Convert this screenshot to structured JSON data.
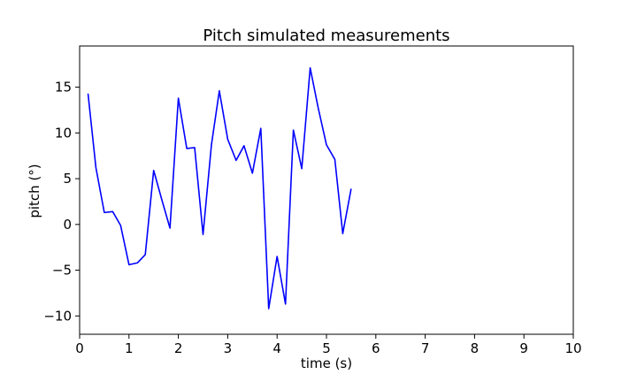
{
  "chart_data": {
    "type": "line",
    "title": "Pitch simulated measurements",
    "xlabel": "time (s)",
    "ylabel": "pitch (°)",
    "xlim": [
      0,
      10
    ],
    "ylim": [
      -12,
      19.5
    ],
    "xticks": [
      0,
      1,
      2,
      3,
      4,
      5,
      6,
      7,
      8,
      9,
      10
    ],
    "yticks": [
      -10,
      -5,
      0,
      5,
      10,
      15
    ],
    "ytick_labels": [
      "−10",
      "−5",
      "0",
      "5",
      "10",
      "15"
    ],
    "grid": false,
    "line_color": "#0000ff",
    "series": [
      {
        "x": [
          0.17,
          0.33,
          0.5,
          0.67,
          0.83,
          1.0,
          1.17,
          1.33,
          1.5,
          1.67,
          1.83,
          2.0,
          2.17,
          2.33,
          2.5,
          2.67,
          2.83,
          3.0,
          3.17,
          3.33,
          3.5,
          3.67,
          3.83,
          4.0,
          4.17,
          4.33,
          4.5,
          4.67,
          4.83,
          5.0,
          5.17,
          5.33,
          5.5
        ],
        "y": [
          14.3,
          6.2,
          1.3,
          1.4,
          -0.1,
          -4.4,
          -4.2,
          -3.3,
          5.9,
          2.6,
          -0.4,
          13.8,
          8.3,
          8.4,
          -1.1,
          8.7,
          14.6,
          9.3,
          7.0,
          8.6,
          5.6,
          10.5,
          -9.2,
          -3.5,
          -8.7,
          10.3,
          6.1,
          17.1,
          12.8,
          8.7,
          7.1,
          -1.0,
          3.9
        ]
      }
    ]
  }
}
